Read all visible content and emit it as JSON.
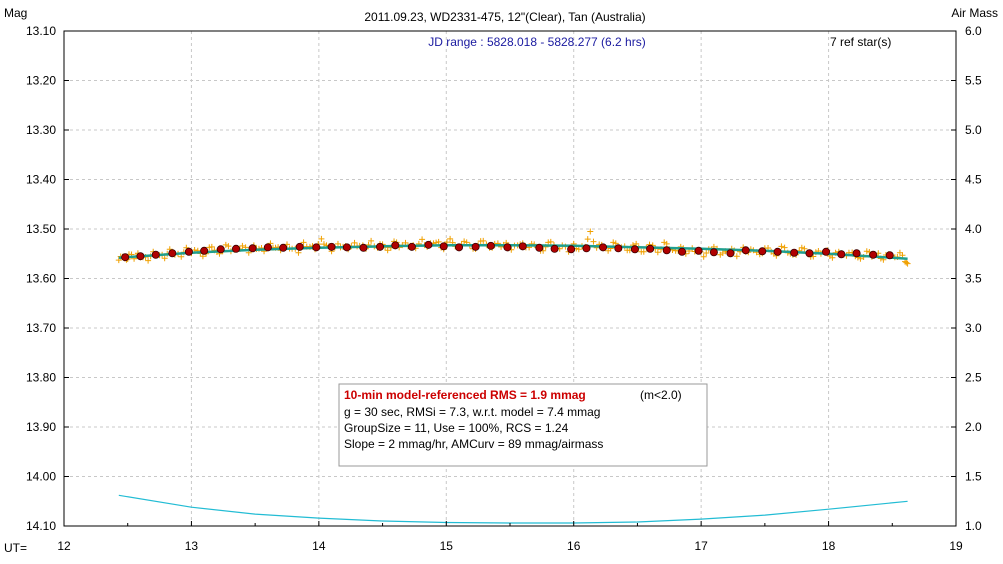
{
  "chart_data": {
    "type": "scatter",
    "title": "2011.09.23, WD2331-475, 12\"(Clear), Tan (Australia)",
    "left_axis_title": "Mag",
    "right_axis_title": "Air Mass",
    "x_axis_prefix": "UT=",
    "jd_range": "JD range : 5828.018 - 5828.277 (6.2 hrs)",
    "ref_stars": "7 ref star(s)",
    "xlim": [
      12,
      19
    ],
    "ylim_mag": [
      13.1,
      14.1
    ],
    "ylim_airmass": [
      1.0,
      6.0
    ],
    "x_ticks": [
      "12",
      "13",
      "14",
      "15",
      "16",
      "17",
      "18",
      "19"
    ],
    "y_ticks": [
      "13.10",
      "13.20",
      "13.30",
      "13.40",
      "13.50",
      "13.60",
      "13.70",
      "13.80",
      "13.90",
      "14.00",
      "14.10"
    ],
    "y2_ticks": [
      "6.0",
      "5.5",
      "5.0",
      "4.5",
      "4.0",
      "3.5",
      "3.0",
      "2.5",
      "2.0",
      "1.5",
      "1.0"
    ],
    "grid": true,
    "colors": {
      "raw_points": "#f0a000",
      "binned_points": "#b00000",
      "model_line": "#1f9f8f",
      "airmass_line": "#22bcd4",
      "rms_text": "#cc0000",
      "jd_text": "#1a1aa0"
    },
    "airmass": {
      "x": [
        12.43,
        13.0,
        13.5,
        14.0,
        14.5,
        15.0,
        15.5,
        16.0,
        16.5,
        17.0,
        17.5,
        18.0,
        18.62
      ],
      "values": [
        1.31,
        1.19,
        1.12,
        1.08,
        1.05,
        1.035,
        1.03,
        1.03,
        1.04,
        1.07,
        1.11,
        1.17,
        1.25
      ]
    },
    "model": {
      "x": [
        12.43,
        13.0,
        13.5,
        14.0,
        14.5,
        15.0,
        15.5,
        16.0,
        16.5,
        17.0,
        17.5,
        18.0,
        18.62
      ],
      "values": [
        13.558,
        13.548,
        13.542,
        13.538,
        13.535,
        13.533,
        13.533,
        13.534,
        13.537,
        13.54,
        13.544,
        13.55,
        13.56
      ]
    },
    "binned": {
      "x": [
        12.48,
        12.6,
        12.72,
        12.85,
        12.98,
        13.1,
        13.23,
        13.35,
        13.48,
        13.6,
        13.72,
        13.85,
        13.98,
        14.1,
        14.22,
        14.35,
        14.48,
        14.6,
        14.73,
        14.86,
        14.98,
        15.1,
        15.23,
        15.35,
        15.48,
        15.6,
        15.73,
        15.85,
        15.98,
        16.1,
        16.23,
        16.35,
        16.48,
        16.6,
        16.73,
        16.85,
        16.98,
        17.1,
        17.23,
        17.35,
        17.48,
        17.6,
        17.73,
        17.85,
        17.98,
        18.1,
        18.22,
        18.35,
        18.48
      ],
      "values": [
        13.557,
        13.555,
        13.552,
        13.549,
        13.546,
        13.544,
        13.541,
        13.54,
        13.539,
        13.537,
        13.538,
        13.536,
        13.537,
        13.536,
        13.537,
        13.538,
        13.536,
        13.533,
        13.536,
        13.532,
        13.535,
        13.537,
        13.536,
        13.534,
        13.537,
        13.535,
        13.538,
        13.54,
        13.541,
        13.539,
        13.537,
        13.539,
        13.541,
        13.54,
        13.543,
        13.546,
        13.544,
        13.547,
        13.549,
        13.543,
        13.545,
        13.546,
        13.548,
        13.549,
        13.546,
        13.551,
        13.549,
        13.552,
        13.553
      ]
    },
    "raw": {
      "x": [
        12.43,
        12.46,
        12.49,
        12.51,
        12.55,
        12.58,
        12.62,
        12.66,
        12.7,
        12.75,
        12.79,
        12.83,
        12.87,
        12.92,
        12.96,
        13.0,
        13.05,
        13.09,
        13.14,
        13.18,
        13.22,
        13.27,
        13.31,
        13.36,
        13.4,
        13.45,
        13.49,
        13.53,
        13.57,
        13.62,
        13.66,
        13.7,
        13.75,
        13.79,
        13.84,
        13.88,
        13.93,
        13.97,
        14.02,
        14.06,
        14.1,
        14.15,
        14.19,
        14.23,
        14.28,
        14.32,
        14.37,
        14.41,
        14.46,
        14.5,
        14.54,
        14.59,
        14.63,
        14.68,
        14.72,
        14.76,
        14.81,
        14.85,
        14.9,
        14.94,
        14.98,
        15.03,
        15.07,
        15.12,
        15.16,
        15.21,
        15.25,
        15.29,
        15.34,
        15.38,
        15.43,
        15.47,
        15.51,
        15.56,
        15.6,
        15.65,
        15.69,
        15.74,
        15.78,
        15.82,
        15.87,
        15.91,
        15.96,
        16.0,
        16.04,
        16.09,
        16.13,
        16.18,
        16.22,
        16.27,
        16.31,
        16.35,
        16.4,
        16.44,
        16.49,
        16.53,
        16.57,
        16.62,
        16.66,
        16.71,
        16.75,
        16.8,
        16.84,
        16.88,
        16.93,
        16.97,
        17.02,
        17.06,
        17.1,
        17.15,
        17.19,
        17.24,
        17.28,
        17.33,
        17.37,
        17.41,
        17.46,
        17.5,
        17.55,
        17.59,
        17.63,
        17.68,
        17.72,
        17.77,
        17.81,
        17.86,
        17.9,
        17.94,
        17.99,
        18.03,
        18.08,
        18.12,
        18.16,
        18.21,
        18.25,
        18.3,
        18.34,
        18.39,
        18.43,
        18.47,
        18.52,
        18.56,
        18.6,
        18.62
      ],
      "values": [
        13.563,
        13.556,
        13.562,
        13.551,
        13.56,
        13.549,
        13.557,
        13.564,
        13.546,
        13.553,
        13.559,
        13.541,
        13.552,
        13.556,
        13.538,
        13.549,
        13.544,
        13.555,
        13.537,
        13.543,
        13.55,
        13.532,
        13.545,
        13.539,
        13.534,
        13.548,
        13.533,
        13.54,
        13.545,
        13.529,
        13.538,
        13.543,
        13.531,
        13.54,
        13.548,
        13.527,
        13.536,
        13.541,
        13.52,
        13.533,
        13.545,
        13.53,
        13.536,
        13.541,
        13.528,
        13.534,
        13.54,
        13.524,
        13.538,
        13.531,
        13.543,
        13.525,
        13.537,
        13.528,
        13.534,
        13.539,
        13.521,
        13.536,
        13.529,
        13.526,
        13.541,
        13.52,
        13.535,
        13.531,
        13.527,
        13.54,
        13.533,
        13.524,
        13.538,
        13.53,
        13.536,
        13.528,
        13.542,
        13.533,
        13.529,
        13.537,
        13.531,
        13.544,
        13.536,
        13.526,
        13.539,
        13.533,
        13.546,
        13.53,
        13.541,
        13.536,
        13.505,
        13.538,
        13.532,
        13.544,
        13.527,
        13.539,
        13.535,
        13.543,
        13.53,
        13.546,
        13.538,
        13.533,
        13.547,
        13.527,
        13.541,
        13.544,
        13.536,
        13.55,
        13.539,
        13.544,
        13.556,
        13.541,
        13.536,
        13.552,
        13.545,
        13.54,
        13.555,
        13.537,
        13.547,
        13.543,
        13.551,
        13.539,
        13.546,
        13.554,
        13.535,
        13.548,
        13.552,
        13.544,
        13.54,
        13.556,
        13.547,
        13.55,
        13.543,
        13.558,
        13.546,
        13.552,
        13.548,
        13.555,
        13.56,
        13.545,
        13.556,
        13.549,
        13.562,
        13.551,
        13.557,
        13.548,
        13.566,
        13.57
      ]
    }
  },
  "info_box": {
    "rms_line": "10-min model-referenced RMS = 1.9 mmag",
    "rms_suffix": "(m<2.0)",
    "line2": "g = 30 sec, RMSi = 7.3, w.r.t. model = 7.4 mmag",
    "line3": "GroupSize = 11, Use = 100%, RCS = 1.24",
    "line4": "Slope = 2 mmag/hr, AMCurv = 89 mmag/airmass"
  }
}
